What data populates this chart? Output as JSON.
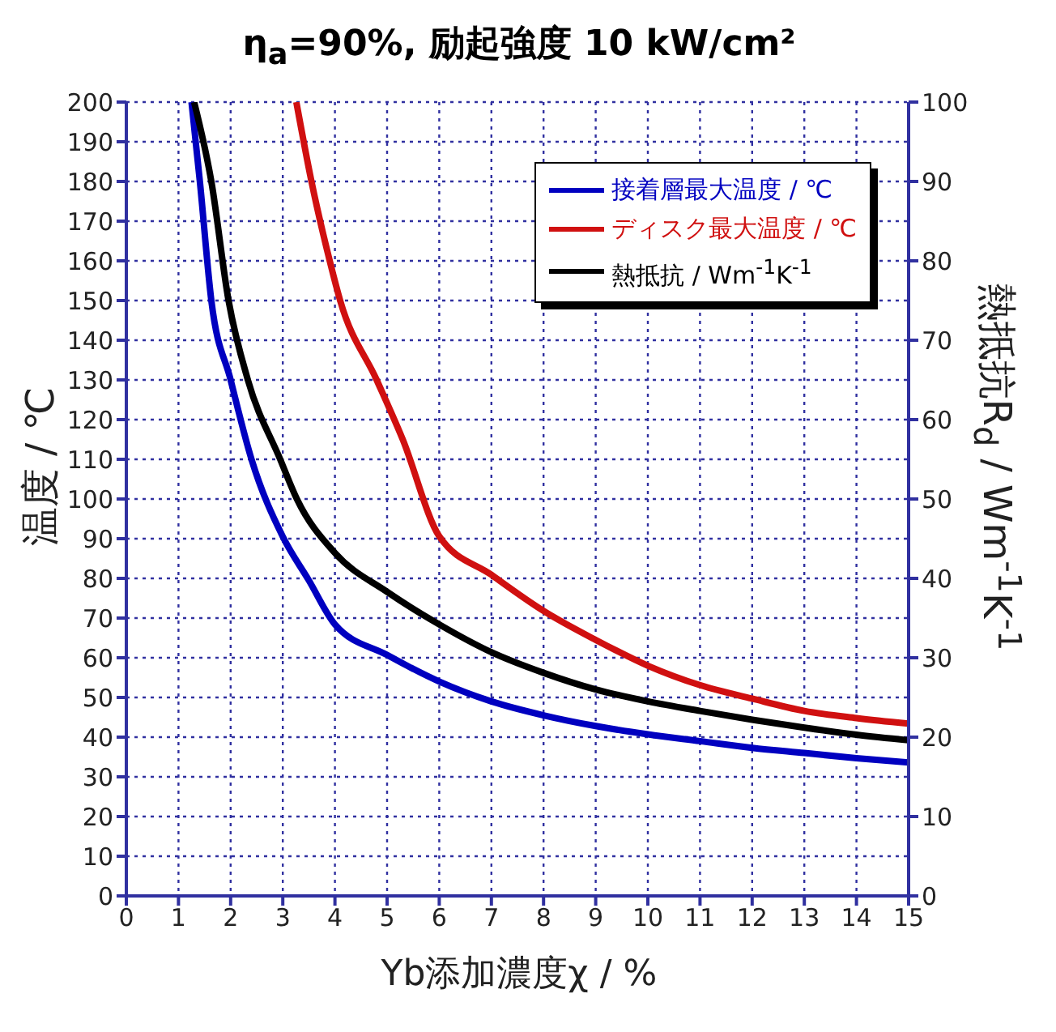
{
  "chart_data": {
    "type": "line",
    "title": "η$_{a}$=90%, 励起強度 10 kW/cm²",
    "xlabel": "Yb添加濃度χ / %",
    "ylabel": "温度 / ℃",
    "y2label": "熱抵抗R$_{d}$ / Wm$^{-1}$K$^{-1}$",
    "xlim": [
      0,
      15
    ],
    "xticks": [
      0,
      1,
      2,
      3,
      4,
      5,
      6,
      7,
      8,
      9,
      10,
      11,
      12,
      13,
      14,
      15
    ],
    "ylim": [
      0,
      200
    ],
    "yticks": [
      0,
      10,
      20,
      30,
      40,
      50,
      60,
      70,
      80,
      90,
      100,
      110,
      120,
      130,
      140,
      150,
      160,
      170,
      180,
      190,
      200
    ],
    "y2lim": [
      0,
      100
    ],
    "y2ticks": [
      0,
      10,
      20,
      30,
      40,
      50,
      60,
      70,
      80,
      90,
      100
    ],
    "grid": true,
    "legend": "top right",
    "line_style": "solid",
    "marker": "none",
    "series": [
      {
        "name": "接着層最大温度 / ℃",
        "color": "#0000c0",
        "x": [
          1.25,
          1.41,
          1.63,
          2.0,
          2.4,
          3.0,
          3.5,
          4,
          5,
          6,
          7,
          8,
          9,
          10,
          11,
          12,
          13,
          14,
          15
        ],
        "values": [
          200,
          180,
          150,
          130,
          110,
          90.5,
          79.5,
          68.4,
          60.7,
          54,
          49,
          45.5,
          42.8,
          40.7,
          39,
          37.3,
          36,
          34.7,
          33.6
        ]
      },
      {
        "name": "ディスク最大温度 / ℃",
        "color": "#d01010",
        "x": [
          3.26,
          3.55,
          3.9,
          4.1,
          4.8,
          5.3,
          6,
          7,
          8,
          9,
          10,
          11,
          12,
          13,
          14,
          15
        ],
        "values": [
          200,
          180,
          160,
          150,
          130,
          115,
          90.6,
          80.9,
          71.8,
          64.5,
          58,
          53.1,
          49.7,
          46.6,
          44.8,
          43.4
        ]
      },
      {
        "name": "熱抵抗 / Wm$^{-1}$K$^{-1}$",
        "color": "#000000",
        "axis": "y2",
        "x": [
          1.3,
          1.63,
          1.96,
          2.33,
          2.95,
          3.27,
          4,
          5,
          6,
          7,
          8,
          9,
          10,
          11,
          12,
          13,
          14,
          15
        ],
        "values": [
          100,
          90,
          75,
          65,
          55,
          50,
          43.2,
          38.3,
          34.2,
          30.7,
          28.1,
          26,
          24.5,
          23.3,
          22.2,
          21.2,
          20.3,
          19.6
        ]
      }
    ]
  }
}
